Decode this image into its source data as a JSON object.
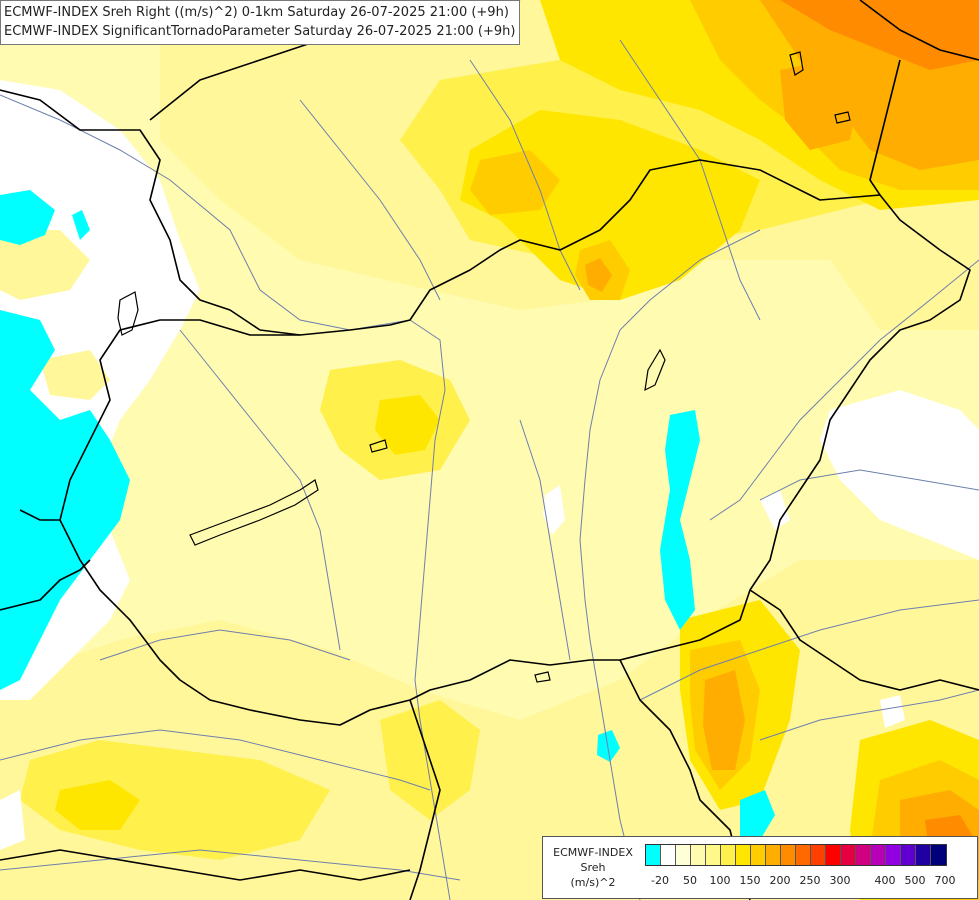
{
  "title": {
    "line1": "ECMWF-INDEX Sreh Right ((m/s)^2) 0-1km Saturday 26-07-2025 21:00 (+9h)",
    "line2": "ECMWF-INDEX SignificantTornadoParameter Saturday 26-07-2025 21:00 (+9h)"
  },
  "legend": {
    "title_line1": "ECMWF-INDEX",
    "title_line2": "Sreh",
    "title_line3": "(m/s)^2",
    "colors": [
      "#00ffff",
      "#ffffff",
      "#ffffd7",
      "#fffcb0",
      "#fff98a",
      "#fff04b",
      "#ffe600",
      "#ffcc00",
      "#ffad00",
      "#ff8c00",
      "#ff6a00",
      "#ff4000",
      "#ff0000",
      "#e60040",
      "#d00080",
      "#b800b8",
      "#9000e0",
      "#6000d0",
      "#2000a0",
      "#00007a"
    ],
    "ticks": [
      "-20",
      "50",
      "100",
      "150",
      "200",
      "250",
      "300",
      "400",
      "500",
      "700"
    ]
  },
  "colors": {
    "cyan": "#00ffff",
    "white": "#ffffff",
    "pale_yellow": "#fffbb0",
    "light_yellow": "#fff79a",
    "yellow": "#fff04b",
    "gold": "#ffe600",
    "orange_light": "#ffcc00",
    "orange": "#ffad00",
    "dark_orange": "#ff8c00",
    "border": "#000000",
    "river": "#6e7fae"
  }
}
